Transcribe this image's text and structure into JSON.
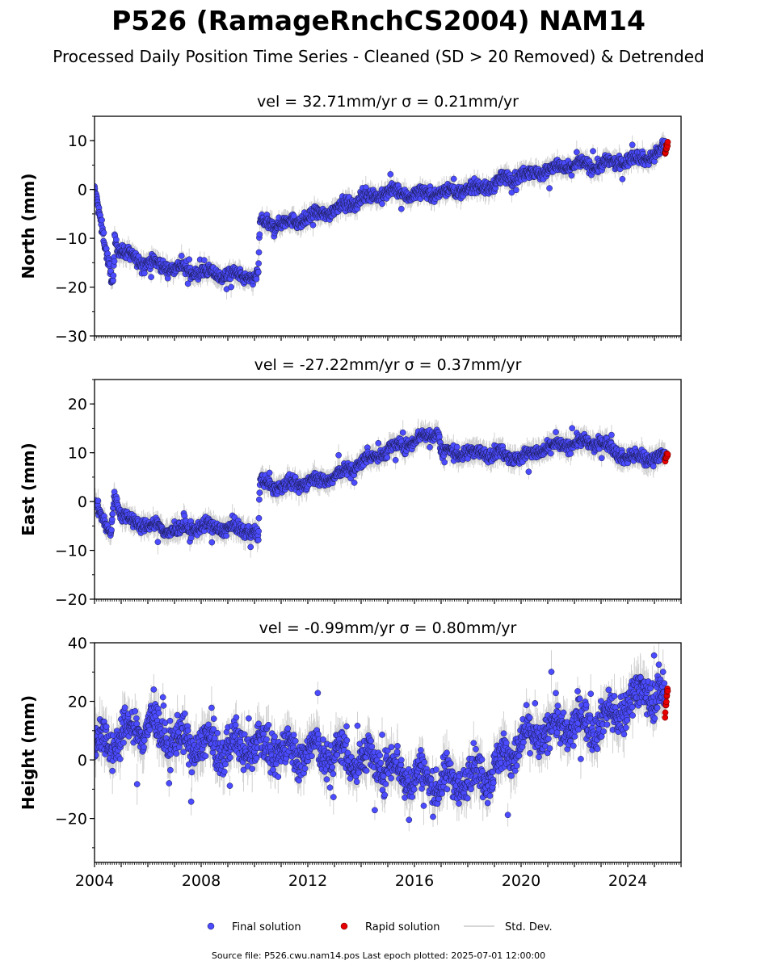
{
  "title": "P526 (RamageRnchCS2004) NAM14",
  "subtitle": "Processed Daily Position Time Series - Cleaned (SD > 20 Removed) & Detrended",
  "footer": "Source file: P526.cwu.nam14.pos  Last epoch plotted: 2025-07-01 12:00:00",
  "chart_data": {
    "type": "scatter",
    "xlim": [
      2004,
      2026
    ],
    "xticks": [
      "2004",
      "2008",
      "2012",
      "2016",
      "2020",
      "2024"
    ],
    "legend": {
      "placement": "bottom-center",
      "entries": [
        {
          "label": "Final solution",
          "color": "#4b4bff"
        },
        {
          "label": "Rapid solution",
          "color": "#e60000"
        },
        {
          "label": "Std. Dev.",
          "color": "#c8c8c8"
        }
      ]
    },
    "panels": [
      {
        "ylabel": "North (mm)",
        "stats": "vel = 32.71mm/yr   σ = 0.21mm/yr",
        "ylim": [
          -30,
          15
        ],
        "yticks": [
          "10",
          "0",
          "−10",
          "−20",
          "−30"
        ],
        "ytick_values": [
          10,
          0,
          -10,
          -20,
          -30
        ],
        "series": [
          {
            "name": "Final solution",
            "x": [
              2004.0,
              2004.4,
              2004.7,
              2004.75,
              2005.0,
              2006.0,
              2007.0,
              2008.0,
              2009.0,
              2010.0,
              2010.15,
              2010.2,
              2011.0,
              2012.0,
              2013.0,
              2014.0,
              2015.0,
              2016.0,
              2017.0,
              2018.0,
              2019.0,
              2019.5,
              2020.0,
              2021.0,
              2022.0,
              2023.0,
              2024.0,
              2025.0,
              2025.4
            ],
            "y": [
              0,
              -12,
              -19,
              -10,
              -13,
              -15,
              -16,
              -17,
              -17.5,
              -18,
              -17.5,
              -7,
              -7,
              -6,
              -4,
              -2,
              -0.5,
              -1,
              -0.5,
              0,
              1,
              2.5,
              3,
              4,
              5,
              5,
              6,
              7,
              8
            ]
          },
          {
            "name": "Rapid solution",
            "x": [
              2025.4,
              2025.45,
              2025.5
            ],
            "y": [
              7.5,
              8.5,
              9.5
            ]
          }
        ]
      },
      {
        "ylabel": "East (mm)",
        "stats": "vel = -27.22mm/yr   σ = 0.37mm/yr",
        "ylim": [
          -20,
          25
        ],
        "yticks": [
          "20",
          "10",
          "0",
          "−10",
          "−20"
        ],
        "ytick_values": [
          20,
          10,
          0,
          -10,
          -20
        ],
        "series": [
          {
            "name": "Final solution",
            "x": [
              2004.0,
              2004.3,
              2004.6,
              2004.75,
              2005.0,
              2006.0,
              2007.0,
              2008.0,
              2009.0,
              2010.0,
              2010.15,
              2010.2,
              2011.0,
              2012.0,
              2013.0,
              2014.0,
              2015.0,
              2016.0,
              2016.9,
              2017.0,
              2018.0,
              2019.0,
              2020.0,
              2021.0,
              2022.0,
              2023.0,
              2024.0,
              2025.0,
              2025.4
            ],
            "y": [
              0,
              -4,
              -6.5,
              2,
              -3,
              -5,
              -6,
              -5,
              -5.5,
              -6,
              -8,
              4,
              3,
              4,
              5,
              8,
              10.5,
              12.5,
              14.5,
              10,
              10,
              10,
              9,
              11,
              12,
              12,
              9,
              9,
              9
            ]
          },
          {
            "name": "Rapid solution",
            "x": [
              2025.4,
              2025.45,
              2025.5
            ],
            "y": [
              8.5,
              9.2,
              9.8
            ]
          }
        ]
      },
      {
        "ylabel": "Height (mm)",
        "stats": "vel = -0.99mm/yr   σ = 0.80mm/yr",
        "ylim": [
          -35,
          40
        ],
        "yticks": [
          "40",
          "20",
          "0",
          "−20"
        ],
        "ytick_values": [
          40,
          20,
          0,
          -20
        ],
        "series": [
          {
            "name": "Final solution",
            "x": [
              2004.0,
              2005.0,
              2006.0,
              2007.0,
              2008.0,
              2009.0,
              2010.0,
              2011.0,
              2012.0,
              2013.0,
              2014.0,
              2015.0,
              2016.0,
              2017.0,
              2018.0,
              2019.0,
              2020.0,
              2021.0,
              2022.0,
              2023.0,
              2024.0,
              2024.7,
              2025.0,
              2025.4
            ],
            "y": [
              5,
              8,
              12,
              7,
              5,
              4,
              5,
              3,
              3,
              2,
              0,
              -2,
              -6,
              -8,
              -6,
              -3,
              6,
              10,
              12,
              13,
              18,
              26,
              20,
              22
            ]
          },
          {
            "name": "Rapid solution",
            "x": [
              2025.4,
              2025.45,
              2025.5
            ],
            "y": [
              16,
              20,
              24
            ]
          }
        ]
      }
    ]
  }
}
